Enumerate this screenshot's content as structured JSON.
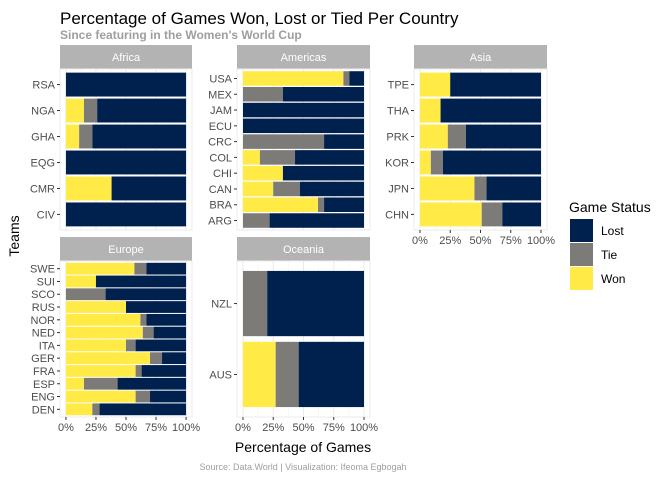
{
  "chart_data": {
    "type": "bar",
    "orientation": "horizontal",
    "stacked": true,
    "title": "Percentage of Games Won, Lost or Tied Per Country",
    "subtitle": "Since featuring in the Women's World Cup",
    "xlabel": "Percentage of Games",
    "ylabel": "Teams",
    "caption": "Source: Data.World | Visualization: Ifeoma Egbogah",
    "xlim": [
      0,
      1
    ],
    "x_ticks": [
      "0%",
      "25%",
      "50%",
      "75%",
      "100%"
    ],
    "grid": true,
    "legend": {
      "title": "Game Status",
      "position": "right",
      "entries": [
        "Lost",
        "Tie",
        "Won"
      ]
    },
    "colors": {
      "Lost": "#00204d",
      "Tie": "#7c7b78",
      "Won": "#ffea46",
      "strip": "#b3b3b3",
      "grid": "#ebebeb",
      "panel_border": "#ebebeb",
      "subtitle": "#9e9e9e"
    },
    "panels": [
      {
        "name": "Africa",
        "teams": [
          {
            "team": "RSA",
            "won": 0.0,
            "tie": 0.0,
            "lost": 1.0
          },
          {
            "team": "NGA",
            "won": 0.15,
            "tie": 0.11,
            "lost": 0.74
          },
          {
            "team": "GHA",
            "won": 0.11,
            "tie": 0.11,
            "lost": 0.78
          },
          {
            "team": "EQG",
            "won": 0.0,
            "tie": 0.0,
            "lost": 1.0
          },
          {
            "team": "CMR",
            "won": 0.38,
            "tie": 0.0,
            "lost": 0.62
          },
          {
            "team": "CIV",
            "won": 0.0,
            "tie": 0.0,
            "lost": 1.0
          }
        ]
      },
      {
        "name": "Americas",
        "teams": [
          {
            "team": "USA",
            "won": 0.83,
            "tie": 0.05,
            "lost": 0.12
          },
          {
            "team": "MEX",
            "won": 0.0,
            "tie": 0.33,
            "lost": 0.67
          },
          {
            "team": "JAM",
            "won": 0.0,
            "tie": 0.0,
            "lost": 1.0
          },
          {
            "team": "ECU",
            "won": 0.0,
            "tie": 0.0,
            "lost": 1.0
          },
          {
            "team": "CRC",
            "won": 0.0,
            "tie": 0.67,
            "lost": 0.33
          },
          {
            "team": "COL",
            "won": 0.14,
            "tie": 0.29,
            "lost": 0.57
          },
          {
            "team": "CHI",
            "won": 0.33,
            "tie": 0.0,
            "lost": 0.67
          },
          {
            "team": "CAN",
            "won": 0.25,
            "tie": 0.22,
            "lost": 0.53
          },
          {
            "team": "BRA",
            "won": 0.62,
            "tie": 0.05,
            "lost": 0.33
          },
          {
            "team": "ARG",
            "won": 0.0,
            "tie": 0.22,
            "lost": 0.78
          }
        ]
      },
      {
        "name": "Asia",
        "teams": [
          {
            "team": "TPE",
            "won": 0.25,
            "tie": 0.0,
            "lost": 0.75
          },
          {
            "team": "THA",
            "won": 0.17,
            "tie": 0.0,
            "lost": 0.83
          },
          {
            "team": "PRK",
            "won": 0.23,
            "tie": 0.15,
            "lost": 0.62
          },
          {
            "team": "KOR",
            "won": 0.09,
            "tie": 0.1,
            "lost": 0.81
          },
          {
            "team": "JPN",
            "won": 0.45,
            "tie": 0.1,
            "lost": 0.45
          },
          {
            "team": "CHN",
            "won": 0.51,
            "tie": 0.17,
            "lost": 0.32
          }
        ]
      },
      {
        "name": "Europe",
        "teams": [
          {
            "team": "SWE",
            "won": 0.57,
            "tie": 0.1,
            "lost": 0.33
          },
          {
            "team": "SUI",
            "won": 0.25,
            "tie": 0.0,
            "lost": 0.75
          },
          {
            "team": "SCO",
            "won": 0.0,
            "tie": 0.33,
            "lost": 0.67
          },
          {
            "team": "RUS",
            "won": 0.5,
            "tie": 0.0,
            "lost": 0.5
          },
          {
            "team": "NOR",
            "won": 0.62,
            "tie": 0.05,
            "lost": 0.33
          },
          {
            "team": "NED",
            "won": 0.64,
            "tie": 0.09,
            "lost": 0.27
          },
          {
            "team": "ITA",
            "won": 0.5,
            "tie": 0.08,
            "lost": 0.42
          },
          {
            "team": "GER",
            "won": 0.7,
            "tie": 0.1,
            "lost": 0.2
          },
          {
            "team": "FRA",
            "won": 0.58,
            "tie": 0.05,
            "lost": 0.37
          },
          {
            "team": "ESP",
            "won": 0.15,
            "tie": 0.28,
            "lost": 0.57
          },
          {
            "team": "ENG",
            "won": 0.58,
            "tie": 0.12,
            "lost": 0.3
          },
          {
            "team": "DEN",
            "won": 0.22,
            "tie": 0.06,
            "lost": 0.72
          }
        ]
      },
      {
        "name": "Oceania",
        "teams": [
          {
            "team": "NZL",
            "won": 0.0,
            "tie": 0.2,
            "lost": 0.8
          },
          {
            "team": "AUS",
            "won": 0.27,
            "tie": 0.19,
            "lost": 0.54
          }
        ]
      }
    ]
  }
}
